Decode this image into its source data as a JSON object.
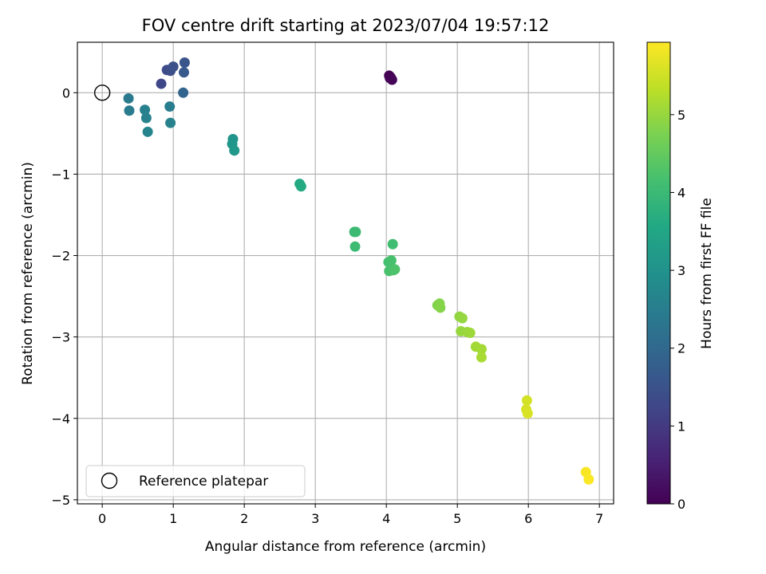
{
  "chart_data": {
    "type": "scatter",
    "title": "FOV centre drift starting at 2023/07/04 19:57:12",
    "xlabel": "Angular distance from reference (arcmin)",
    "ylabel": "Rotation from reference (arcmin)",
    "xlim": [
      -0.35,
      7.2
    ],
    "ylim": [
      -5.05,
      0.62
    ],
    "x_ticks": [
      0,
      1,
      2,
      3,
      4,
      5,
      6,
      7
    ],
    "y_ticks": [
      0,
      -1,
      -2,
      -3,
      -4,
      -5
    ],
    "x_tick_labels": [
      "0",
      "1",
      "2",
      "3",
      "4",
      "5",
      "6",
      "7"
    ],
    "y_tick_labels": [
      "0",
      "−1",
      "−2",
      "−3",
      "−4",
      "−5"
    ],
    "grid": true,
    "colormap": "viridis",
    "colorbar": {
      "label": "Hours from first FF file",
      "range": [
        0,
        5.93
      ],
      "ticks": [
        0,
        1,
        2,
        3,
        4,
        5
      ],
      "tick_labels": [
        "0",
        "1",
        "2",
        "3",
        "4",
        "5"
      ]
    },
    "reference_point": {
      "x": 0,
      "y": 0,
      "label": "Reference platepar"
    },
    "legend_position": "lower-left",
    "points": [
      {
        "x": 4.04,
        "y": 0.21,
        "hours": 0.0
      },
      {
        "x": 4.06,
        "y": 0.19,
        "hours": 0.02
      },
      {
        "x": 4.08,
        "y": 0.16,
        "hours": 0.05
      },
      {
        "x": 4.05,
        "y": 0.18,
        "hours": 0.08
      },
      {
        "x": 0.83,
        "y": 0.11,
        "hours": 1.25
      },
      {
        "x": 0.91,
        "y": 0.28,
        "hours": 1.35
      },
      {
        "x": 0.96,
        "y": 0.27,
        "hours": 1.4
      },
      {
        "x": 1.0,
        "y": 0.32,
        "hours": 1.45
      },
      {
        "x": 1.16,
        "y": 0.37,
        "hours": 1.55
      },
      {
        "x": 1.15,
        "y": 0.25,
        "hours": 1.65
      },
      {
        "x": 1.14,
        "y": 0.0,
        "hours": 1.9
      },
      {
        "x": 0.37,
        "y": -0.07,
        "hours": 2.4
      },
      {
        "x": 0.38,
        "y": -0.22,
        "hours": 2.45
      },
      {
        "x": 0.6,
        "y": -0.21,
        "hours": 2.55
      },
      {
        "x": 0.62,
        "y": -0.31,
        "hours": 2.6
      },
      {
        "x": 0.64,
        "y": -0.48,
        "hours": 2.65
      },
      {
        "x": 0.95,
        "y": -0.17,
        "hours": 2.5
      },
      {
        "x": 0.96,
        "y": -0.37,
        "hours": 2.6
      },
      {
        "x": 1.84,
        "y": -0.57,
        "hours": 3.05
      },
      {
        "x": 1.83,
        "y": -0.63,
        "hours": 3.1
      },
      {
        "x": 1.86,
        "y": -0.71,
        "hours": 3.15
      },
      {
        "x": 2.78,
        "y": -1.12,
        "hours": 3.55
      },
      {
        "x": 2.8,
        "y": -1.15,
        "hours": 3.6
      },
      {
        "x": 3.55,
        "y": -1.71,
        "hours": 4.0
      },
      {
        "x": 3.57,
        "y": -1.71,
        "hours": 4.02
      },
      {
        "x": 3.56,
        "y": -1.89,
        "hours": 4.05
      },
      {
        "x": 4.09,
        "y": -1.86,
        "hours": 4.1
      },
      {
        "x": 4.03,
        "y": -2.08,
        "hours": 4.15
      },
      {
        "x": 4.07,
        "y": -2.06,
        "hours": 4.18
      },
      {
        "x": 4.04,
        "y": -2.19,
        "hours": 4.2
      },
      {
        "x": 4.1,
        "y": -2.18,
        "hours": 4.22
      },
      {
        "x": 4.12,
        "y": -2.17,
        "hours": 4.25
      },
      {
        "x": 4.72,
        "y": -2.61,
        "hours": 4.8
      },
      {
        "x": 4.75,
        "y": -2.59,
        "hours": 4.82
      },
      {
        "x": 4.76,
        "y": -2.64,
        "hours": 4.85
      },
      {
        "x": 5.03,
        "y": -2.75,
        "hours": 4.95
      },
      {
        "x": 5.07,
        "y": -2.77,
        "hours": 4.98
      },
      {
        "x": 5.05,
        "y": -2.93,
        "hours": 5.0
      },
      {
        "x": 5.14,
        "y": -2.94,
        "hours": 5.02
      },
      {
        "x": 5.18,
        "y": -2.95,
        "hours": 5.05
      },
      {
        "x": 5.26,
        "y": -3.12,
        "hours": 5.1
      },
      {
        "x": 5.34,
        "y": -3.15,
        "hours": 5.12
      },
      {
        "x": 5.34,
        "y": -3.25,
        "hours": 5.15
      },
      {
        "x": 5.98,
        "y": -3.78,
        "hours": 5.55
      },
      {
        "x": 5.97,
        "y": -3.89,
        "hours": 5.58
      },
      {
        "x": 5.99,
        "y": -3.94,
        "hours": 5.6
      },
      {
        "x": 6.81,
        "y": -4.66,
        "hours": 5.88
      },
      {
        "x": 6.85,
        "y": -4.75,
        "hours": 5.9
      }
    ]
  }
}
